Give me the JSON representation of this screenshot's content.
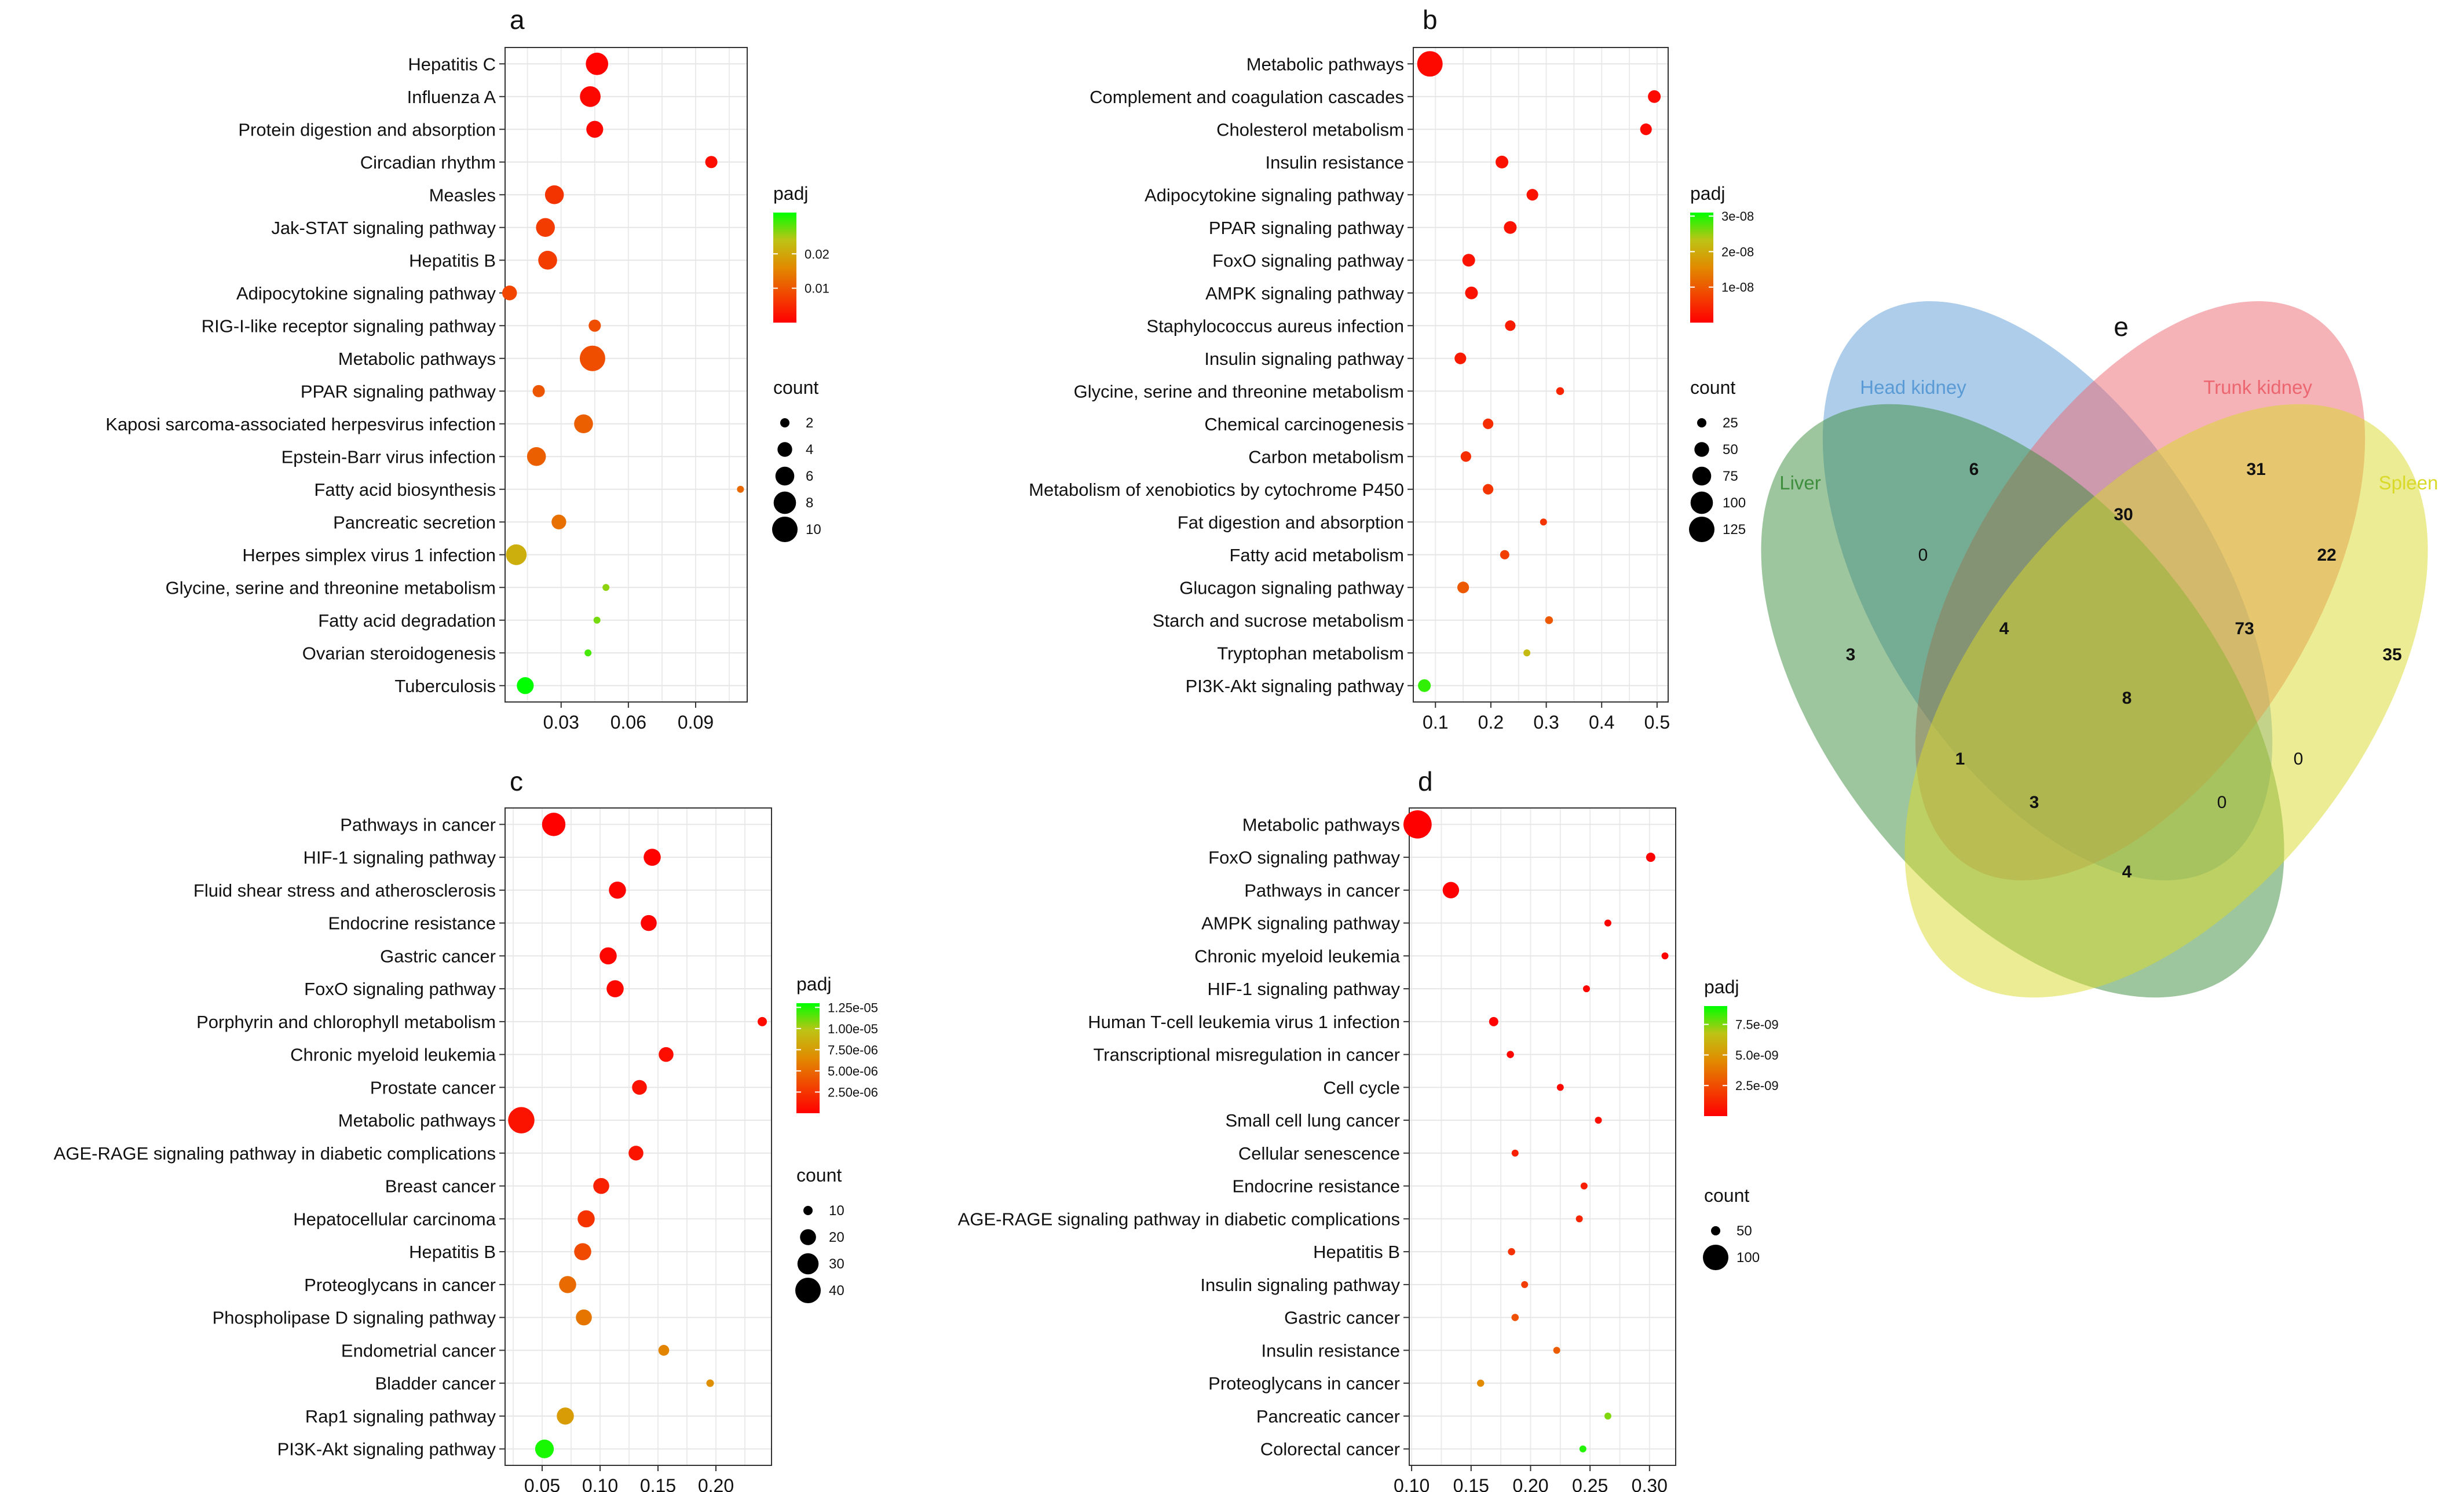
{
  "figure": {
    "panels": [
      "a",
      "b",
      "c",
      "d",
      "e"
    ]
  },
  "chart_data": [
    {
      "panel": "a",
      "type": "scatter",
      "title": "a",
      "xlabel": "",
      "ylabel": "",
      "xlim": [
        0.005,
        0.113
      ],
      "xticks": [
        0.03,
        0.06,
        0.09
      ],
      "xtick_labels": [
        "0.03",
        "0.06",
        "0.09"
      ],
      "grid": true,
      "categories": [
        "Hepatitis C",
        "Influenza A",
        "Protein digestion and absorption",
        "Circadian rhythm",
        "Measles",
        "Jak-STAT signaling pathway",
        "Hepatitis B",
        "Adipocytokine signaling pathway",
        "RIG-I-like receptor signaling pathway",
        "Metabolic pathways",
        "PPAR signaling pathway",
        "Kaposi sarcoma-associated herpesvirus infection",
        "Epstein-Barr virus infection",
        "Fatty acid biosynthesis",
        "Pancreatic secretion",
        "Herpes simplex virus 1 infection",
        "Glycine, serine and threonine metabolism",
        "Fatty acid degradation",
        "Ovarian steroidogenesis",
        "Tuberculosis"
      ],
      "x": [
        0.046,
        0.043,
        0.045,
        0.097,
        0.027,
        0.023,
        0.024,
        0.007,
        0.045,
        0.044,
        0.02,
        0.04,
        0.019,
        0.11,
        0.029,
        0.01,
        0.05,
        0.046,
        0.042,
        0.014
      ],
      "count": [
        8,
        7,
        5,
        3,
        6,
        6,
        6,
        4,
        3,
        10,
        3,
        6,
        6,
        1,
        4,
        7,
        1,
        1,
        1,
        5
      ],
      "padj": [
        0.0003,
        0.0009,
        0.0009,
        0.0015,
        0.006,
        0.007,
        0.007,
        0.008,
        0.009,
        0.009,
        0.01,
        0.011,
        0.011,
        0.012,
        0.013,
        0.021,
        0.026,
        0.027,
        0.029,
        0.032
      ],
      "legend_padj": {
        "title": "padj",
        "range": [
          0,
          0.032
        ],
        "ticks": [
          0.01,
          0.02
        ],
        "labels": [
          "0.01",
          "0.02"
        ]
      },
      "legend_count": {
        "title": "count",
        "values": [
          2,
          4,
          6,
          8,
          10
        ],
        "labels": [
          "2",
          "4",
          "6",
          "8",
          "10"
        ]
      }
    },
    {
      "panel": "b",
      "type": "scatter",
      "title": "b",
      "xlabel": "",
      "ylabel": "",
      "xlim": [
        0.06,
        0.52
      ],
      "xticks": [
        0.1,
        0.2,
        0.3,
        0.4,
        0.5
      ],
      "xtick_labels": [
        "0.1",
        "0.2",
        "0.3",
        "0.4",
        "0.5"
      ],
      "grid": true,
      "categories": [
        "Metabolic pathways",
        "Complement and coagulation cascades",
        "Cholesterol metabolism",
        "Insulin resistance",
        "Adipocytokine signaling pathway",
        "PPAR signaling pathway",
        "FoxO signaling pathway",
        "AMPK signaling pathway",
        "Staphylococcus aureus infection",
        "Insulin signaling pathway",
        "Glycine, serine and threonine metabolism",
        "Chemical carcinogenesis",
        "Carbon metabolism",
        "Metabolism of xenobiotics by cytochrome P450",
        "Fat digestion and absorption",
        "Fatty acid metabolism",
        "Glucagon signaling pathway",
        "Starch and sucrose metabolism",
        "Tryptophan metabolism",
        "PI3K-Akt signaling pathway"
      ],
      "x": [
        0.09,
        0.495,
        0.48,
        0.22,
        0.275,
        0.235,
        0.16,
        0.165,
        0.235,
        0.145,
        0.325,
        0.195,
        0.155,
        0.195,
        0.295,
        0.225,
        0.15,
        0.305,
        0.265,
        0.08
      ],
      "count": [
        125,
        40,
        35,
        40,
        35,
        40,
        40,
        40,
        30,
        35,
        20,
        30,
        30,
        30,
        15,
        25,
        35,
        20,
        15,
        40
      ],
      "padj": [
        1e-09,
        1e-09,
        1e-09,
        2e-09,
        2e-09,
        2e-09,
        2e-09,
        2e-09,
        3e-09,
        3e-09,
        4e-09,
        5e-09,
        5e-09,
        6e-09,
        6e-09,
        7e-09,
        1e-08,
        1e-08,
        2.2e-08,
        2.9e-08
      ],
      "legend_padj": {
        "title": "padj",
        "range": [
          0,
          3.1e-08
        ],
        "ticks": [
          1e-08,
          2e-08,
          3e-08
        ],
        "labels": [
          "1e-08",
          "2e-08",
          "3e-08"
        ]
      },
      "legend_count": {
        "title": "count",
        "values": [
          25,
          50,
          75,
          100,
          125
        ],
        "labels": [
          "25",
          "50",
          "75",
          "100",
          "125"
        ]
      }
    },
    {
      "panel": "c",
      "type": "scatter",
      "title": "c",
      "xlabel": "",
      "ylabel": "",
      "xlim": [
        0.018,
        0.248
      ],
      "xticks": [
        0.05,
        0.1,
        0.15,
        0.2
      ],
      "xtick_labels": [
        "0.05",
        "0.10",
        "0.15",
        "0.20"
      ],
      "grid": true,
      "categories": [
        "Pathways in cancer",
        "HIF-1 signaling pathway",
        "Fluid shear stress and atherosclerosis",
        "Endocrine resistance",
        "Gastric cancer",
        "FoxO signaling pathway",
        "Porphyrin and chlorophyll metabolism",
        "Chronic myeloid leukemia",
        "Prostate cancer",
        "Metabolic pathways",
        "AGE-RAGE signaling pathway in diabetic complications",
        "Breast cancer",
        "Hepatocellular carcinoma",
        "Hepatitis B",
        "Proteoglycans in cancer",
        "Phospholipase D signaling pathway",
        "Endometrial cancer",
        "Bladder cancer",
        "Rap1 signaling pathway",
        "PI3K-Akt signaling pathway"
      ],
      "x": [
        0.06,
        0.145,
        0.115,
        0.142,
        0.107,
        0.113,
        0.24,
        0.157,
        0.134,
        0.032,
        0.131,
        0.101,
        0.088,
        0.085,
        0.072,
        0.086,
        0.155,
        0.195,
        0.07,
        0.052
      ],
      "count": [
        35,
        22,
        22,
        20,
        22,
        22,
        10,
        18,
        18,
        42,
        18,
        20,
        22,
        22,
        22,
        20,
        12,
        8,
        22,
        25
      ],
      "padj": [
        1e-07,
        1e-07,
        2e-07,
        2e-07,
        3e-07,
        4e-07,
        5e-07,
        6e-07,
        8e-07,
        9e-07,
        1e-06,
        1.5e-06,
        2.4e-06,
        3.5e-06,
        5e-06,
        5.5e-06,
        6.2e-06,
        6.8e-06,
        7.5e-06,
        1.26e-05
      ],
      "legend_padj": {
        "title": "padj",
        "range": [
          0,
          1.3e-05
        ],
        "ticks": [
          2.5e-06,
          5e-06,
          7.5e-06,
          1e-05,
          1.25e-05
        ],
        "labels": [
          "2.50e-06",
          "5.00e-06",
          "7.50e-06",
          "1.00e-05",
          "1.25e-05"
        ]
      },
      "legend_count": {
        "title": "count",
        "values": [
          10,
          20,
          30,
          40
        ],
        "labels": [
          "10",
          "20",
          "30",
          "40"
        ]
      }
    },
    {
      "panel": "d",
      "type": "scatter",
      "title": "d",
      "xlabel": "",
      "ylabel": "",
      "xlim": [
        0.098,
        0.322
      ],
      "xticks": [
        0.1,
        0.15,
        0.2,
        0.25,
        0.3
      ],
      "xtick_labels": [
        "0.10",
        "0.15",
        "0.20",
        "0.25",
        "0.30"
      ],
      "grid": true,
      "categories": [
        "Metabolic pathways",
        "FoxO signaling pathway",
        "Pathways in cancer",
        "AMPK signaling pathway",
        "Chronic myeloid leukemia",
        "HIF-1 signaling pathway",
        "Human T-cell leukemia virus 1 infection",
        "Transcriptional misregulation in cancer",
        "Cell cycle",
        "Small cell lung cancer",
        "Cellular senescence",
        "Endocrine resistance",
        "AGE-RAGE signaling pathway in diabetic complications",
        "Hepatitis B",
        "Insulin signaling pathway",
        "Gastric cancer",
        "Insulin resistance",
        "Proteoglycans in cancer",
        "Pancreatic cancer",
        "Colorectal cancer"
      ],
      "x": [
        0.105,
        0.301,
        0.133,
        0.265,
        0.313,
        0.247,
        0.169,
        0.183,
        0.225,
        0.257,
        0.187,
        0.245,
        0.241,
        0.184,
        0.195,
        0.187,
        0.222,
        0.158,
        0.265,
        0.244
      ],
      "count": [
        110,
        50,
        70,
        40,
        30,
        40,
        50,
        45,
        40,
        35,
        40,
        30,
        35,
        45,
        40,
        45,
        35,
        45,
        20,
        30
      ],
      "padj": [
        0,
        0,
        0,
        0,
        0,
        1e-10,
        1e-10,
        2e-10,
        3e-10,
        5e-10,
        1e-09,
        1e-09,
        1.2e-09,
        1.6e-09,
        2e-09,
        2.6e-09,
        3e-09,
        4.5e-09,
        7.5e-09,
        8.6e-09
      ],
      "legend_padj": {
        "title": "padj",
        "range": [
          0,
          9e-09
        ],
        "ticks": [
          2.5e-09,
          5e-09,
          7.5e-09
        ],
        "labels": [
          "2.5e-09",
          "5.0e-09",
          "7.5e-09"
        ]
      },
      "legend_count": {
        "title": "count",
        "values": [
          50,
          100
        ],
        "labels": [
          "50",
          "100"
        ]
      }
    }
  ],
  "venn": {
    "title": "e",
    "sets": [
      {
        "name": "Head kidney",
        "color": "#5B9BD5"
      },
      {
        "name": "Trunk kidney",
        "color": "#EC6670"
      },
      {
        "name": "Liver",
        "color": "#3E8E3E"
      },
      {
        "name": "Spleen",
        "color": "#D9D92A"
      }
    ],
    "regions": [
      {
        "sets": "Head kidney only",
        "value": "6"
      },
      {
        "sets": "Trunk kidney only",
        "value": "31"
      },
      {
        "sets": "Head kidney & Trunk kidney",
        "value": "30"
      },
      {
        "sets": "Trunk kidney & Spleen",
        "value": "22"
      },
      {
        "sets": "Head kidney & Liver",
        "value": "0"
      },
      {
        "sets": "Head kidney & Trunk kidney & Liver",
        "value": "4"
      },
      {
        "sets": "Head kidney & Trunk kidney & Spleen",
        "value": "73"
      },
      {
        "sets": "Liver only",
        "value": "3"
      },
      {
        "sets": "Spleen only",
        "value": "35"
      },
      {
        "sets": "All four",
        "value": "8"
      },
      {
        "sets": "Trunk kidney & Liver",
        "value": "1"
      },
      {
        "sets": "Head kidney & Spleen",
        "value": "0"
      },
      {
        "sets": "Trunk kidney & Liver & Spleen",
        "value": "3"
      },
      {
        "sets": "Head kidney & Liver & Spleen",
        "value": "0"
      },
      {
        "sets": "Liver & Spleen",
        "value": "4"
      }
    ]
  }
}
